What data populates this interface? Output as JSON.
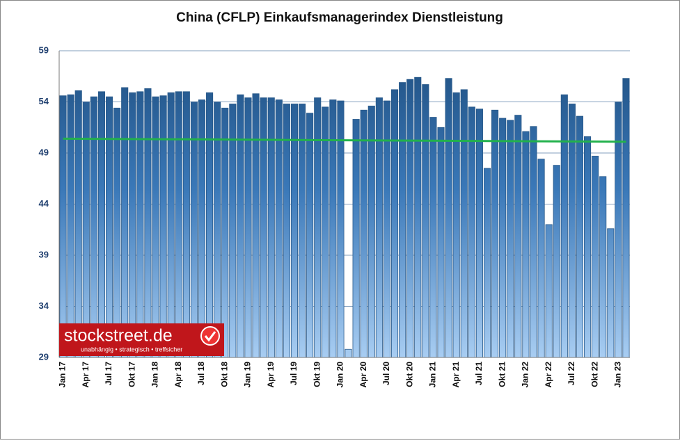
{
  "chart_data": {
    "type": "bar",
    "title": "China (CFLP) Einkaufsmanagerindex Dienstleistung",
    "categories": [
      "Jan 17",
      null,
      null,
      "Apr 17",
      null,
      null,
      "Jul 17",
      null,
      null,
      "Okt 17",
      null,
      null,
      "Jan 18",
      null,
      null,
      "Apr 18",
      null,
      null,
      "Jul 18",
      null,
      null,
      "Okt 18",
      null,
      null,
      "Jan 19",
      null,
      null,
      "Apr 19",
      null,
      null,
      "Jul 19",
      null,
      null,
      "Okt 19",
      null,
      null,
      "Jan 20",
      null,
      null,
      "Apr 20",
      null,
      null,
      "Jul 20",
      null,
      null,
      "Okt 20",
      null,
      null,
      "Jan 21",
      null,
      null,
      "Apr 21",
      null,
      null,
      "Jul 21",
      null,
      null,
      "Okt 21",
      null,
      null,
      "Jan 22",
      null,
      null,
      "Apr 22",
      null,
      null,
      "Jul 22",
      null,
      null,
      "Okt 22",
      null,
      null,
      "Jan 23",
      null
    ],
    "values": [
      54.6,
      54.7,
      55.1,
      54.0,
      54.5,
      55.0,
      54.5,
      53.4,
      55.4,
      54.9,
      55.0,
      55.3,
      54.5,
      54.6,
      54.9,
      55.0,
      55.0,
      54.0,
      54.2,
      54.9,
      54.0,
      53.4,
      53.8,
      54.7,
      54.4,
      54.8,
      54.4,
      54.4,
      54.2,
      53.8,
      53.8,
      53.8,
      52.9,
      54.4,
      53.5,
      54.2,
      54.1,
      29.8,
      52.3,
      53.2,
      53.6,
      54.4,
      54.1,
      55.2,
      55.9,
      56.2,
      56.4,
      55.7,
      52.5,
      51.5,
      56.3,
      54.9,
      55.2,
      53.5,
      53.3,
      47.5,
      53.2,
      52.4,
      52.2,
      52.7,
      51.1,
      51.6,
      48.4,
      42.0,
      47.8,
      54.7,
      53.8,
      52.6,
      50.6,
      48.7,
      46.7,
      41.6,
      54.0,
      56.3
    ],
    "color": "#2a5a8a",
    "trendline": {
      "color": "#22b14c",
      "values": [
        50.4,
        50.1
      ]
    },
    "ylim": [
      29,
      59
    ],
    "yticks": [
      29,
      34,
      39,
      44,
      49,
      54,
      59
    ],
    "grid": true,
    "watermark": {
      "text": "stockstreet.de",
      "tagline": "unabhängig • strategisch • treffsicher"
    }
  }
}
